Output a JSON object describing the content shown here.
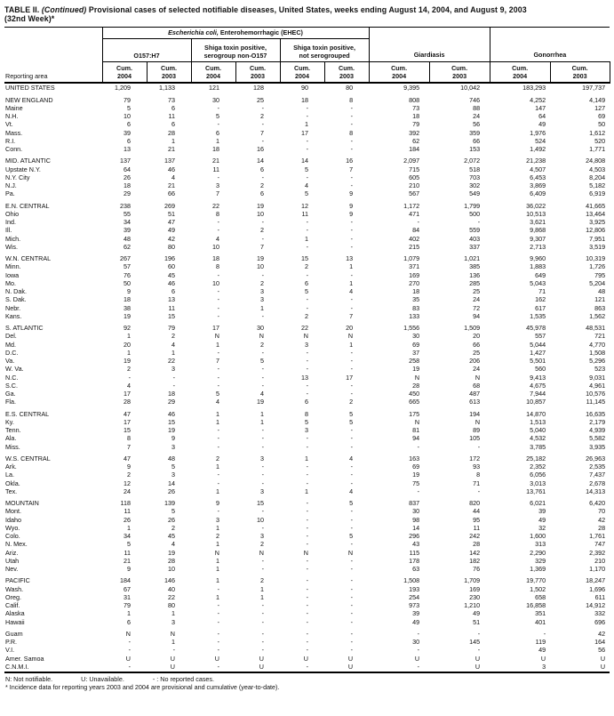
{
  "title": {
    "prefix": "TABLE II. ",
    "continued": "(Continued)",
    "rest": " Provisional cases of selected notifiable diseases, United States, weeks ending August 14, 2004, and August 9, 2003",
    "line2": "(32nd Week)*"
  },
  "table": {
    "header": {
      "reporting_area_label": "Reporting area",
      "ehec_italic": "Escherichia coli,",
      "ehec_rest": " Enterohemorrhagic (EHEC)",
      "subgroup_o157": "O157:H7",
      "subgroup_non_o157": "Shiga toxin positive,\nserogroup non-O157",
      "subgroup_not_serogrouped": "Shiga toxin positive,\nnot serogrouped",
      "giardiasis_label": "Giardiasis",
      "gonorrhea_label": "Gonorrhea",
      "cum_label": "Cum.",
      "year_2004": "2004",
      "year_2003": "2003"
    },
    "rows": [
      {
        "area": "UNITED STATES",
        "values": [
          "1,209",
          "1,133",
          "121",
          "128",
          "90",
          "80",
          "9,395",
          "10,042",
          "183,293",
          "197,737"
        ]
      },
      {
        "area": "NEW ENGLAND",
        "gap_before": true,
        "values": [
          "79",
          "73",
          "30",
          "25",
          "18",
          "8",
          "808",
          "746",
          "4,252",
          "4,149"
        ]
      },
      {
        "area": "Maine",
        "values": [
          "5",
          "6",
          "-",
          "-",
          "-",
          "-",
          "73",
          "88",
          "147",
          "127"
        ]
      },
      {
        "area": "N.H.",
        "values": [
          "10",
          "11",
          "5",
          "2",
          "-",
          "-",
          "18",
          "24",
          "64",
          "69"
        ]
      },
      {
        "area": "Vt.",
        "values": [
          "6",
          "6",
          "-",
          "-",
          "1",
          "-",
          "79",
          "56",
          "49",
          "50"
        ]
      },
      {
        "area": "Mass.",
        "values": [
          "39",
          "28",
          "6",
          "7",
          "17",
          "8",
          "392",
          "359",
          "1,976",
          "1,612"
        ]
      },
      {
        "area": "R.I.",
        "values": [
          "6",
          "1",
          "1",
          "-",
          "-",
          "-",
          "62",
          "66",
          "524",
          "520"
        ]
      },
      {
        "area": "Conn.",
        "values": [
          "13",
          "21",
          "18",
          "16",
          "-",
          "-",
          "184",
          "153",
          "1,492",
          "1,771"
        ]
      },
      {
        "area": "MID. ATLANTIC",
        "gap_before": true,
        "values": [
          "137",
          "137",
          "21",
          "14",
          "14",
          "16",
          "2,097",
          "2,072",
          "21,238",
          "24,808"
        ]
      },
      {
        "area": "Upstate N.Y.",
        "values": [
          "64",
          "46",
          "11",
          "6",
          "5",
          "7",
          "715",
          "518",
          "4,507",
          "4,503"
        ]
      },
      {
        "area": "N.Y. City",
        "values": [
          "26",
          "4",
          "-",
          "-",
          "-",
          "-",
          "605",
          "703",
          "6,453",
          "8,204"
        ]
      },
      {
        "area": "N.J.",
        "values": [
          "18",
          "21",
          "3",
          "2",
          "4",
          "-",
          "210",
          "302",
          "3,869",
          "5,182"
        ]
      },
      {
        "area": "Pa.",
        "values": [
          "29",
          "66",
          "7",
          "6",
          "5",
          "9",
          "567",
          "549",
          "6,409",
          "6,919"
        ]
      },
      {
        "area": "E.N. CENTRAL",
        "gap_before": true,
        "values": [
          "238",
          "269",
          "22",
          "19",
          "12",
          "9",
          "1,172",
          "1,799",
          "36,022",
          "41,665"
        ]
      },
      {
        "area": "Ohio",
        "values": [
          "55",
          "51",
          "8",
          "10",
          "11",
          "9",
          "471",
          "500",
          "10,513",
          "13,464"
        ]
      },
      {
        "area": "Ind.",
        "values": [
          "34",
          "47",
          "-",
          "-",
          "-",
          "-",
          "-",
          "-",
          "3,621",
          "3,925"
        ]
      },
      {
        "area": "Ill.",
        "values": [
          "39",
          "49",
          "-",
          "2",
          "-",
          "-",
          "84",
          "559",
          "9,868",
          "12,806"
        ]
      },
      {
        "area": "Mich.",
        "values": [
          "48",
          "42",
          "4",
          "-",
          "1",
          "-",
          "402",
          "403",
          "9,307",
          "7,951"
        ]
      },
      {
        "area": "Wis.",
        "values": [
          "62",
          "80",
          "10",
          "7",
          "-",
          "-",
          "215",
          "337",
          "2,713",
          "3,519"
        ]
      },
      {
        "area": "W.N. CENTRAL",
        "gap_before": true,
        "values": [
          "267",
          "196",
          "18",
          "19",
          "15",
          "13",
          "1,079",
          "1,021",
          "9,960",
          "10,319"
        ]
      },
      {
        "area": "Minn.",
        "values": [
          "57",
          "60",
          "8",
          "10",
          "2",
          "1",
          "371",
          "385",
          "1,883",
          "1,726"
        ]
      },
      {
        "area": "Iowa",
        "values": [
          "76",
          "45",
          "-",
          "-",
          "-",
          "-",
          "169",
          "136",
          "649",
          "795"
        ]
      },
      {
        "area": "Mo.",
        "values": [
          "50",
          "46",
          "10",
          "2",
          "6",
          "1",
          "270",
          "285",
          "5,043",
          "5,204"
        ]
      },
      {
        "area": "N. Dak.",
        "values": [
          "9",
          "6",
          "-",
          "3",
          "5",
          "4",
          "18",
          "25",
          "71",
          "48"
        ]
      },
      {
        "area": "S. Dak.",
        "values": [
          "18",
          "13",
          "-",
          "3",
          "-",
          "-",
          "35",
          "24",
          "162",
          "121"
        ]
      },
      {
        "area": "Nebr.",
        "values": [
          "38",
          "11",
          "-",
          "1",
          "-",
          "-",
          "83",
          "72",
          "617",
          "863"
        ]
      },
      {
        "area": "Kans.",
        "values": [
          "19",
          "15",
          "-",
          "-",
          "2",
          "7",
          "133",
          "94",
          "1,535",
          "1,562"
        ]
      },
      {
        "area": "S. ATLANTIC",
        "gap_before": true,
        "values": [
          "92",
          "79",
          "17",
          "30",
          "22",
          "20",
          "1,556",
          "1,509",
          "45,978",
          "48,531"
        ]
      },
      {
        "area": "Del.",
        "values": [
          "1",
          "2",
          "N",
          "N",
          "N",
          "N",
          "30",
          "20",
          "557",
          "721"
        ]
      },
      {
        "area": "Md.",
        "values": [
          "20",
          "4",
          "1",
          "2",
          "3",
          "1",
          "69",
          "66",
          "5,044",
          "4,770"
        ]
      },
      {
        "area": "D.C.",
        "values": [
          "1",
          "1",
          "-",
          "-",
          "-",
          "-",
          "37",
          "25",
          "1,427",
          "1,508"
        ]
      },
      {
        "area": "Va.",
        "values": [
          "19",
          "22",
          "7",
          "5",
          "-",
          "-",
          "258",
          "206",
          "5,501",
          "5,296"
        ]
      },
      {
        "area": "W. Va.",
        "values": [
          "2",
          "3",
          "-",
          "-",
          "-",
          "-",
          "19",
          "24",
          "560",
          "523"
        ]
      },
      {
        "area": "N.C.",
        "values": [
          "-",
          "-",
          "-",
          "-",
          "13",
          "17",
          "N",
          "N",
          "9,413",
          "9,031"
        ]
      },
      {
        "area": "S.C.",
        "values": [
          "4",
          "-",
          "-",
          "-",
          "-",
          "-",
          "28",
          "68",
          "4,675",
          "4,961"
        ]
      },
      {
        "area": "Ga.",
        "values": [
          "17",
          "18",
          "5",
          "4",
          "-",
          "-",
          "450",
          "487",
          "7,944",
          "10,576"
        ]
      },
      {
        "area": "Fla.",
        "values": [
          "28",
          "29",
          "4",
          "19",
          "6",
          "2",
          "665",
          "613",
          "10,857",
          "11,145"
        ]
      },
      {
        "area": "E.S. CENTRAL",
        "gap_before": true,
        "values": [
          "47",
          "46",
          "1",
          "1",
          "8",
          "5",
          "175",
          "194",
          "14,870",
          "16,635"
        ]
      },
      {
        "area": "Ky.",
        "values": [
          "17",
          "15",
          "1",
          "1",
          "5",
          "5",
          "N",
          "N",
          "1,513",
          "2,179"
        ]
      },
      {
        "area": "Tenn.",
        "values": [
          "15",
          "19",
          "-",
          "-",
          "3",
          "-",
          "81",
          "89",
          "5,040",
          "4,939"
        ]
      },
      {
        "area": "Ala.",
        "values": [
          "8",
          "9",
          "-",
          "-",
          "-",
          "-",
          "94",
          "105",
          "4,532",
          "5,582"
        ]
      },
      {
        "area": "Miss.",
        "values": [
          "7",
          "3",
          "-",
          "-",
          "-",
          "-",
          "-",
          "-",
          "3,785",
          "3,935"
        ]
      },
      {
        "area": "W.S. CENTRAL",
        "gap_before": true,
        "values": [
          "47",
          "48",
          "2",
          "3",
          "1",
          "4",
          "163",
          "172",
          "25,182",
          "26,963"
        ]
      },
      {
        "area": "Ark.",
        "values": [
          "9",
          "5",
          "1",
          "-",
          "-",
          "-",
          "69",
          "93",
          "2,352",
          "2,535"
        ]
      },
      {
        "area": "La.",
        "values": [
          "2",
          "3",
          "-",
          "-",
          "-",
          "-",
          "19",
          "8",
          "6,056",
          "7,437"
        ]
      },
      {
        "area": "Okla.",
        "values": [
          "12",
          "14",
          "-",
          "-",
          "-",
          "-",
          "75",
          "71",
          "3,013",
          "2,678"
        ]
      },
      {
        "area": "Tex.",
        "values": [
          "24",
          "26",
          "1",
          "3",
          "1",
          "4",
          "-",
          "-",
          "13,761",
          "14,313"
        ]
      },
      {
        "area": "MOUNTAIN",
        "gap_before": true,
        "values": [
          "118",
          "139",
          "9",
          "15",
          "-",
          "5",
          "837",
          "820",
          "6,021",
          "6,420"
        ]
      },
      {
        "area": "Mont.",
        "values": [
          "11",
          "5",
          "-",
          "-",
          "-",
          "-",
          "30",
          "44",
          "39",
          "70"
        ]
      },
      {
        "area": "Idaho",
        "values": [
          "26",
          "26",
          "3",
          "10",
          "-",
          "-",
          "98",
          "95",
          "49",
          "42"
        ]
      },
      {
        "area": "Wyo.",
        "values": [
          "1",
          "2",
          "1",
          "-",
          "-",
          "-",
          "14",
          "11",
          "32",
          "28"
        ]
      },
      {
        "area": "Colo.",
        "values": [
          "34",
          "45",
          "2",
          "3",
          "-",
          "5",
          "296",
          "242",
          "1,600",
          "1,761"
        ]
      },
      {
        "area": "N. Mex.",
        "values": [
          "5",
          "4",
          "1",
          "2",
          "-",
          "-",
          "43",
          "28",
          "313",
          "747"
        ]
      },
      {
        "area": "Ariz.",
        "values": [
          "11",
          "19",
          "N",
          "N",
          "N",
          "N",
          "115",
          "142",
          "2,290",
          "2,392"
        ]
      },
      {
        "area": "Utah",
        "values": [
          "21",
          "28",
          "1",
          "-",
          "-",
          "-",
          "178",
          "182",
          "329",
          "210"
        ]
      },
      {
        "area": "Nev.",
        "values": [
          "9",
          "10",
          "1",
          "-",
          "-",
          "-",
          "63",
          "76",
          "1,369",
          "1,170"
        ]
      },
      {
        "area": "PACIFIC",
        "gap_before": true,
        "values": [
          "184",
          "146",
          "1",
          "2",
          "-",
          "-",
          "1,508",
          "1,709",
          "19,770",
          "18,247"
        ]
      },
      {
        "area": "Wash.",
        "values": [
          "67",
          "40",
          "-",
          "1",
          "-",
          "-",
          "193",
          "169",
          "1,502",
          "1,696"
        ]
      },
      {
        "area": "Oreg.",
        "values": [
          "31",
          "22",
          "1",
          "1",
          "-",
          "-",
          "254",
          "230",
          "658",
          "611"
        ]
      },
      {
        "area": "Calif.",
        "values": [
          "79",
          "80",
          "-",
          "-",
          "-",
          "-",
          "973",
          "1,210",
          "16,858",
          "14,912"
        ]
      },
      {
        "area": "Alaska",
        "values": [
          "1",
          "1",
          "-",
          "-",
          "-",
          "-",
          "39",
          "49",
          "351",
          "332"
        ]
      },
      {
        "area": "Hawaii",
        "values": [
          "6",
          "3",
          "-",
          "-",
          "-",
          "-",
          "49",
          "51",
          "401",
          "696"
        ]
      },
      {
        "area": "Guam",
        "gap_before": true,
        "values": [
          "N",
          "N",
          "-",
          "-",
          "-",
          "-",
          "-",
          "-",
          "-",
          "42"
        ]
      },
      {
        "area": "P.R.",
        "values": [
          "-",
          "1",
          "-",
          "-",
          "-",
          "-",
          "30",
          "145",
          "119",
          "164"
        ]
      },
      {
        "area": "V.I.",
        "values": [
          "-",
          "-",
          "-",
          "-",
          "-",
          "-",
          "-",
          "-",
          "49",
          "56"
        ]
      },
      {
        "area": "Amer. Samoa",
        "values": [
          "U",
          "U",
          "U",
          "U",
          "U",
          "U",
          "U",
          "U",
          "U",
          "U"
        ]
      },
      {
        "area": "C.N.M.I.",
        "values": [
          "-",
          "U",
          "-",
          "U",
          "-",
          "U",
          "-",
          "U",
          "3",
          "U"
        ]
      }
    ]
  },
  "footnotes": {
    "legend_n": "N: Not notifiable.",
    "legend_u": "U: Unavailable.",
    "legend_dash": "- : No reported cases.",
    "note": "* Incidence data for reporting years 2003 and 2004 are provisional and cumulative (year-to-date)."
  }
}
